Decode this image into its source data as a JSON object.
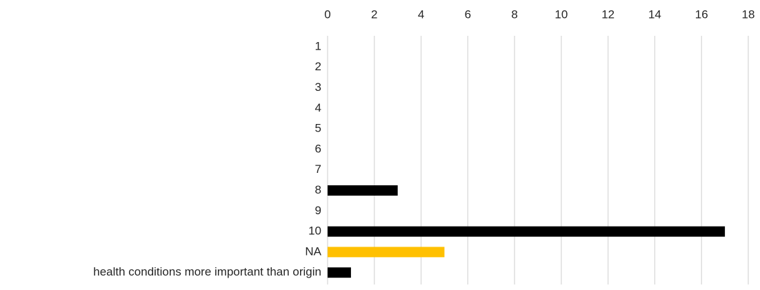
{
  "chart_data": {
    "type": "bar",
    "orientation": "horizontal",
    "categories": [
      "1",
      "2",
      "3",
      "4",
      "5",
      "6",
      "7",
      "8",
      "9",
      "10",
      "NA",
      "health conditions more important than origin"
    ],
    "values": [
      0,
      0,
      0,
      0,
      0,
      0,
      0,
      3,
      0,
      17,
      5,
      1
    ],
    "bar_colors": [
      "#000000",
      "#000000",
      "#000000",
      "#000000",
      "#000000",
      "#000000",
      "#000000",
      "#000000",
      "#000000",
      "#000000",
      "#ffc000",
      "#000000"
    ],
    "x_ticks": [
      "0",
      "2",
      "4",
      "6",
      "8",
      "10",
      "12",
      "14",
      "16",
      "18"
    ],
    "xlim": [
      0,
      18
    ],
    "x_axis_position": "top",
    "grid": true,
    "legend": "none",
    "title": "",
    "xlabel": "",
    "ylabel": ""
  }
}
